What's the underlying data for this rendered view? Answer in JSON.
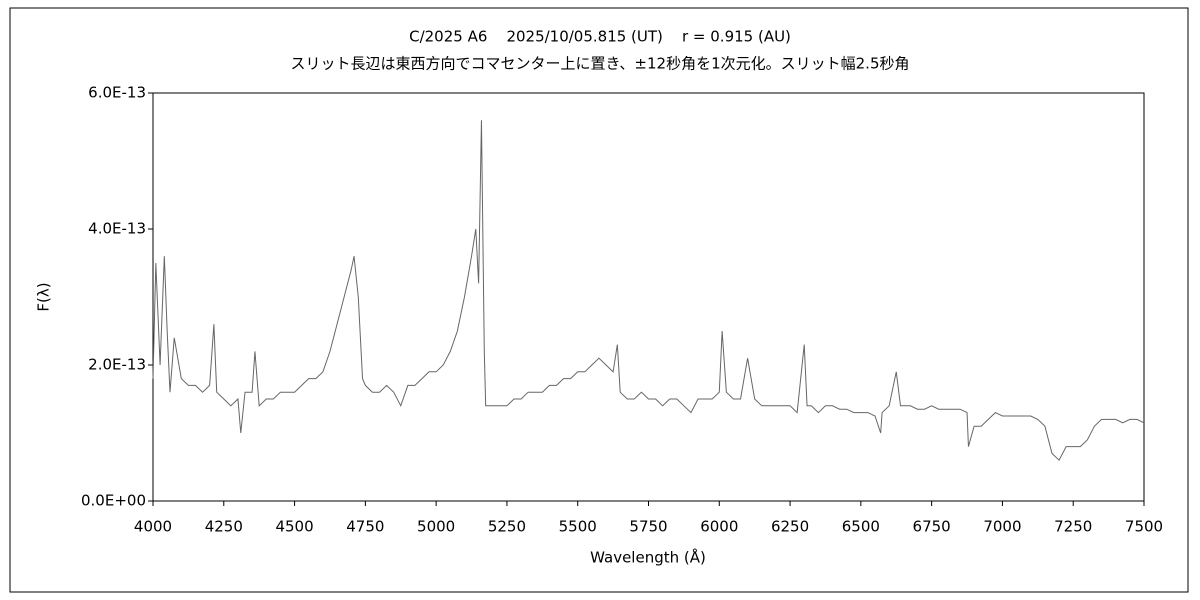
{
  "chart_data": {
    "type": "line",
    "title": "C/2025 A6    2025/10/05.815 (UT)    r = 0.915 (AU)",
    "subtitle": "スリット長辺は東西方向でコマセンター上に置き、±12秒角を1次元化。スリット幅2.5秒角",
    "x_label": "Wavelength (Å)",
    "y_label": "F(λ)",
    "color": "#666666",
    "grid": false,
    "xlim": [
      4000,
      7500
    ],
    "xticks": [
      4000,
      4250,
      4500,
      4750,
      5000,
      5250,
      5500,
      5750,
      6000,
      6250,
      6500,
      6750,
      7000,
      7250,
      7500
    ],
    "ylim": [
      0,
      6e-13
    ],
    "yticks": [
      {
        "value": 0,
        "label": "0.0E+00"
      },
      {
        "value": 2e-13,
        "label": "2.0E-13"
      },
      {
        "value": 4e-13,
        "label": "4.0E-13"
      },
      {
        "value": 6e-13,
        "label": "6.0E-13"
      }
    ],
    "x": [
      4000,
      4010,
      4025,
      4040,
      4050,
      4060,
      4075,
      4100,
      4125,
      4150,
      4175,
      4200,
      4215,
      4225,
      4250,
      4275,
      4300,
      4310,
      4325,
      4350,
      4360,
      4375,
      4400,
      4425,
      4450,
      4475,
      4500,
      4525,
      4550,
      4575,
      4600,
      4625,
      4650,
      4675,
      4700,
      4710,
      4725,
      4740,
      4750,
      4775,
      4800,
      4825,
      4850,
      4875,
      4900,
      4925,
      4950,
      4975,
      5000,
      5025,
      5050,
      5075,
      5100,
      5125,
      5140,
      5150,
      5160,
      5170,
      5175,
      5200,
      5225,
      5250,
      5275,
      5300,
      5325,
      5350,
      5375,
      5400,
      5425,
      5450,
      5475,
      5500,
      5525,
      5550,
      5575,
      5600,
      5625,
      5640,
      5650,
      5675,
      5700,
      5725,
      5750,
      5775,
      5800,
      5825,
      5850,
      5875,
      5900,
      5925,
      5950,
      5975,
      6000,
      6010,
      6025,
      6050,
      6075,
      6100,
      6125,
      6150,
      6175,
      6200,
      6225,
      6250,
      6275,
      6300,
      6310,
      6325,
      6350,
      6375,
      6400,
      6425,
      6450,
      6475,
      6500,
      6525,
      6550,
      6570,
      6575,
      6600,
      6625,
      6640,
      6650,
      6675,
      6700,
      6725,
      6750,
      6775,
      6800,
      6825,
      6850,
      6875,
      6880,
      6900,
      6925,
      6950,
      6975,
      7000,
      7025,
      7050,
      7075,
      7100,
      7125,
      7150,
      7175,
      7200,
      7225,
      7250,
      7275,
      7300,
      7325,
      7350,
      7375,
      7400,
      7425,
      7450,
      7475,
      7500
    ],
    "values": [
      1.8e-13,
      3.5e-13,
      2e-13,
      3.6e-13,
      2.5e-13,
      1.6e-13,
      2.4e-13,
      1.8e-13,
      1.7e-13,
      1.7e-13,
      1.6e-13,
      1.7e-13,
      2.6e-13,
      1.6e-13,
      1.5e-13,
      1.4e-13,
      1.5e-13,
      1e-13,
      1.6e-13,
      1.6e-13,
      2.2e-13,
      1.4e-13,
      1.5e-13,
      1.5e-13,
      1.6e-13,
      1.6e-13,
      1.6e-13,
      1.7e-13,
      1.8e-13,
      1.8e-13,
      1.9e-13,
      2.2e-13,
      2.6e-13,
      3e-13,
      3.4e-13,
      3.6e-13,
      3e-13,
      1.8e-13,
      1.7e-13,
      1.6e-13,
      1.6e-13,
      1.7e-13,
      1.6e-13,
      1.4e-13,
      1.7e-13,
      1.7e-13,
      1.8e-13,
      1.9e-13,
      1.9e-13,
      2e-13,
      2.2e-13,
      2.5e-13,
      3e-13,
      3.6e-13,
      4e-13,
      3.2e-13,
      5.6e-13,
      2.2e-13,
      1.4e-13,
      1.4e-13,
      1.4e-13,
      1.4e-13,
      1.5e-13,
      1.5e-13,
      1.6e-13,
      1.6e-13,
      1.6e-13,
      1.7e-13,
      1.7e-13,
      1.8e-13,
      1.8e-13,
      1.9e-13,
      1.9e-13,
      2e-13,
      2.1e-13,
      2e-13,
      1.9e-13,
      2.3e-13,
      1.6e-13,
      1.5e-13,
      1.5e-13,
      1.6e-13,
      1.5e-13,
      1.5e-13,
      1.4e-13,
      1.5e-13,
      1.5e-13,
      1.4e-13,
      1.3e-13,
      1.5e-13,
      1.5e-13,
      1.5e-13,
      1.6e-13,
      2.5e-13,
      1.6e-13,
      1.5e-13,
      1.5e-13,
      2.1e-13,
      1.5e-13,
      1.4e-13,
      1.4e-13,
      1.4e-13,
      1.4e-13,
      1.4e-13,
      1.3e-13,
      2.3e-13,
      1.4e-13,
      1.4e-13,
      1.3e-13,
      1.4e-13,
      1.4e-13,
      1.35e-13,
      1.35e-13,
      1.3e-13,
      1.3e-13,
      1.3e-13,
      1.25e-13,
      1e-13,
      1.3e-13,
      1.4e-13,
      1.9e-13,
      1.4e-13,
      1.4e-13,
      1.4e-13,
      1.35e-13,
      1.35e-13,
      1.4e-13,
      1.35e-13,
      1.35e-13,
      1.35e-13,
      1.35e-13,
      1.3e-13,
      8e-14,
      1.1e-13,
      1.1e-13,
      1.2e-13,
      1.3e-13,
      1.25e-13,
      1.25e-13,
      1.25e-13,
      1.25e-13,
      1.25e-13,
      1.2e-13,
      1.1e-13,
      7e-14,
      6e-14,
      8e-14,
      8e-14,
      8e-14,
      9e-14,
      1.1e-13,
      1.2e-13,
      1.2e-13,
      1.2e-13,
      1.15e-13,
      1.2e-13,
      1.2e-13,
      1.15e-13
    ]
  }
}
